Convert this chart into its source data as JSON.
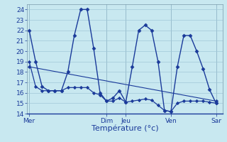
{
  "title": "Température (°c)",
  "bg_color": "#c8e8f0",
  "grid_color": "#a0c8d8",
  "line_color": "#1a3a9a",
  "ylim": [
    14,
    24.5
  ],
  "yticks": [
    14,
    15,
    16,
    17,
    18,
    19,
    20,
    21,
    22,
    23,
    24
  ],
  "day_labels": [
    "Mer",
    "Dim",
    "Jeu",
    "Ven",
    "Sar"
  ],
  "day_positions": [
    0,
    12,
    15,
    22,
    29
  ],
  "xlim": [
    -0.3,
    30
  ],
  "series1_x": [
    0,
    1,
    2,
    3,
    4,
    5,
    6,
    7,
    8,
    9,
    10,
    11,
    12,
    13,
    14,
    15,
    16,
    17,
    18,
    19,
    20,
    21,
    22,
    23,
    24,
    25,
    26,
    27,
    28,
    29
  ],
  "series1_y": [
    22,
    19,
    16.6,
    16.2,
    16.2,
    16.2,
    18.0,
    21.5,
    24.0,
    24.0,
    20.3,
    16.0,
    15.2,
    15.5,
    16.2,
    15.1,
    18.5,
    22.0,
    22.5,
    22.0,
    19.0,
    14.3,
    14.2,
    18.5,
    21.5,
    21.5,
    20.0,
    18.3,
    16.3,
    15.0
  ],
  "series2_x": [
    0,
    1,
    2,
    3,
    4,
    5,
    6,
    7,
    8,
    9,
    10,
    11,
    12,
    13,
    14,
    15,
    16,
    17,
    18,
    19,
    20,
    21,
    22,
    23,
    24,
    25,
    26,
    27,
    28,
    29
  ],
  "series2_y": [
    19,
    16.6,
    16.2,
    16.2,
    16.2,
    16.2,
    16.5,
    16.5,
    16.5,
    16.5,
    16.0,
    15.8,
    15.2,
    15.2,
    15.5,
    15.1,
    15.2,
    15.3,
    15.4,
    15.3,
    14.8,
    14.3,
    14.2,
    15.0,
    15.2,
    15.2,
    15.2,
    15.2,
    15.1,
    15.0
  ],
  "trend_x": [
    0,
    29
  ],
  "trend_y": [
    18.5,
    15.2
  ],
  "xlabel_fontsize": 8,
  "tick_fontsize": 6.5
}
